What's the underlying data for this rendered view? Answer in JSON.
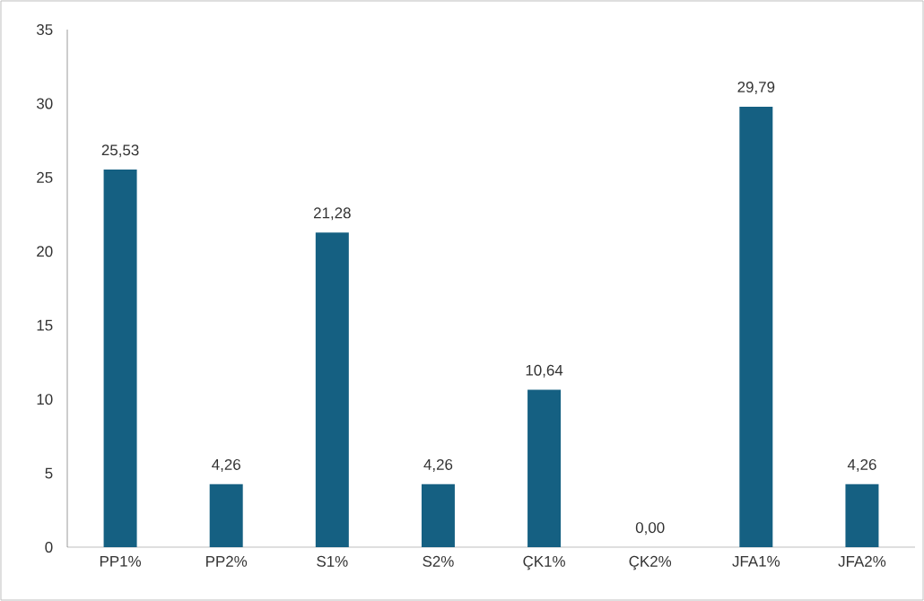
{
  "chart_data": {
    "type": "bar",
    "categories": [
      "PP1%",
      "PP2%",
      "S1%",
      "S2%",
      "ÇK1%",
      "ÇK2%",
      "JFA1%",
      "JFA2%"
    ],
    "values": [
      25.53,
      4.26,
      21.28,
      4.26,
      10.64,
      0.0,
      29.79,
      4.26
    ],
    "value_labels": [
      "25,53",
      "4,26",
      "21,28",
      "4,26",
      "10,64",
      "0,00",
      "29,79",
      "4,26"
    ],
    "color": "#156082",
    "ylim": [
      0,
      35
    ],
    "yticks": [
      0,
      5,
      10,
      15,
      20,
      25,
      30,
      35
    ]
  }
}
